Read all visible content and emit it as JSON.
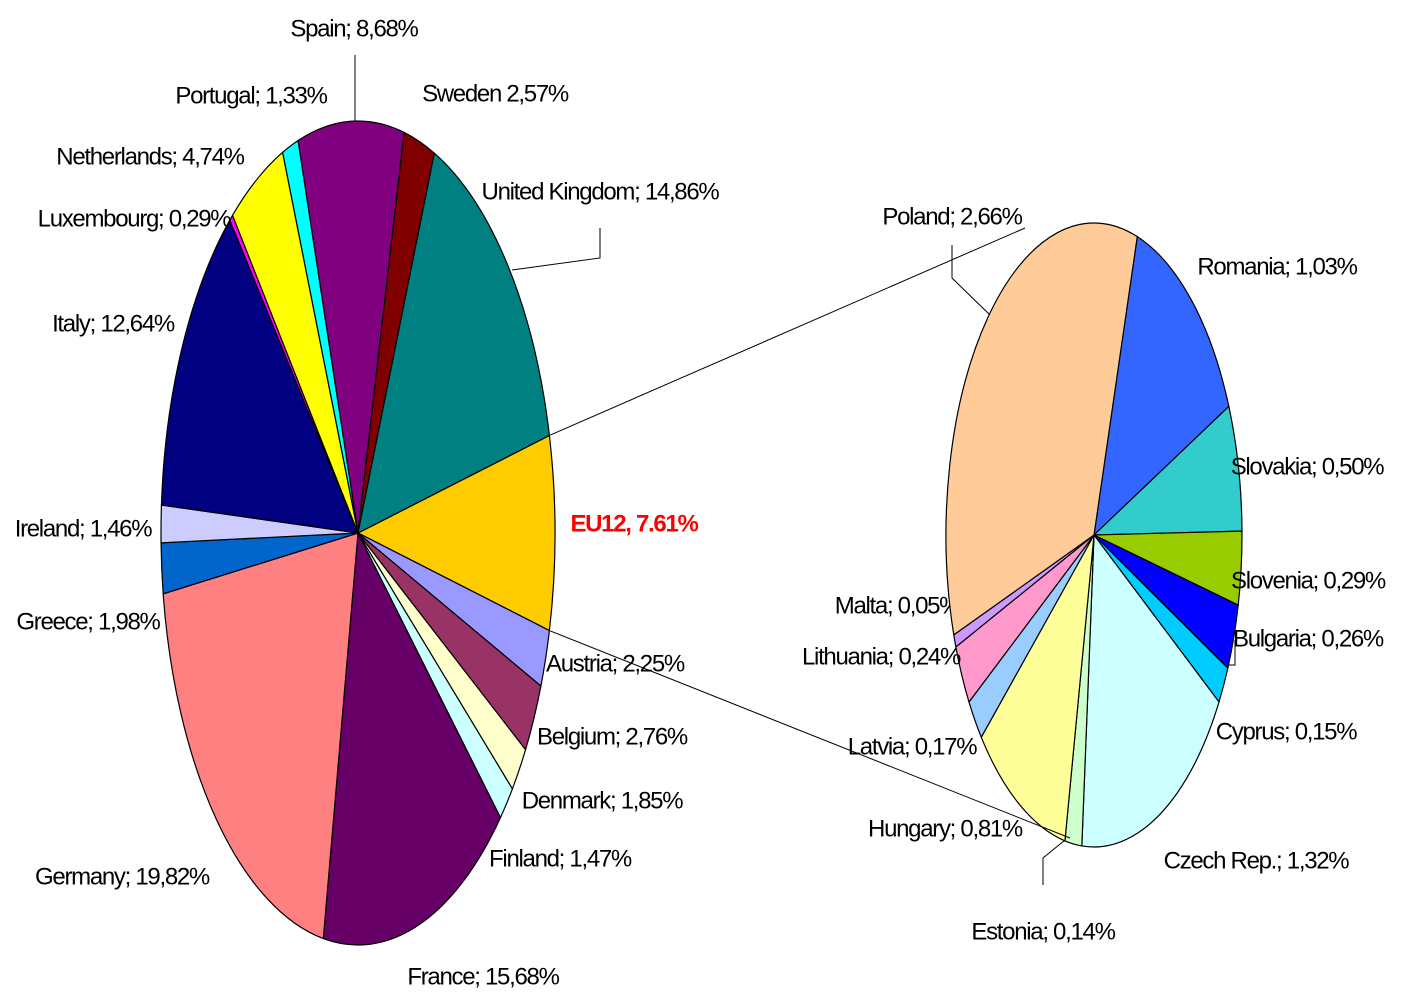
{
  "chart_data": [
    {
      "type": "pie",
      "values": [
        7.61,
        2.25,
        2.76,
        1.85,
        1.47,
        15.68,
        19.82,
        1.98,
        1.46,
        12.64,
        0.29,
        4.74,
        1.33,
        8.68,
        2.57,
        14.86
      ],
      "value_labels": [
        "EU12, 7.61%",
        "Austria; 2,25%",
        "Belgium; 2,76%",
        "Denmark; 1,85%",
        "Finland; 1,47%",
        "France; 15,68%",
        "Germany; 19,82%",
        "Greece; 1,98%",
        "Ireland; 1,46%",
        "Italy; 12,64%",
        "Luxembourg; 0,29%",
        "Netherlands; 4,74%",
        "Portugal; 1,33%",
        "Spain; 8,68%",
        "Sweden 2,57%",
        "United Kingdom; 14,86%"
      ],
      "colors": [
        "#ffcc00",
        "#9999ff",
        "#993366",
        "#ffffcc",
        "#ccffff",
        "#660066",
        "#ff8080",
        "#0066cc",
        "#ccccff",
        "#000080",
        "#ff00ff",
        "#ffff00",
        "#00ffff",
        "#800080",
        "#800000",
        "#008080"
      ]
    },
    {
      "type": "pie",
      "values": [
        1.03,
        0.5,
        0.29,
        0.26,
        0.15,
        1.32,
        0.14,
        0.81,
        0.17,
        0.24,
        0.05,
        2.66
      ],
      "value_labels": [
        "Romania; 1,03%",
        "Slovakia; 0,50%",
        "Slovenia; 0,29%",
        "Bulgaria; 0,26%",
        "Cyprus; 0,15%",
        "Czech Rep.; 1,32%",
        "Estonia; 0,14%",
        "Hungary; 0,81%",
        "Latvia; 0,17%",
        "Lithuania; 0,24%",
        "Malta; 0,05%",
        "Poland; 2,66%"
      ],
      "colors": [
        "#3366ff",
        "#33cccc",
        "#99cc00",
        "#0000ff",
        "#00ccff",
        "#ccffff",
        "#ccffcc",
        "#ffff99",
        "#99ccff",
        "#ff99cc",
        "#cc99ff",
        "#ffcc99"
      ]
    }
  ]
}
